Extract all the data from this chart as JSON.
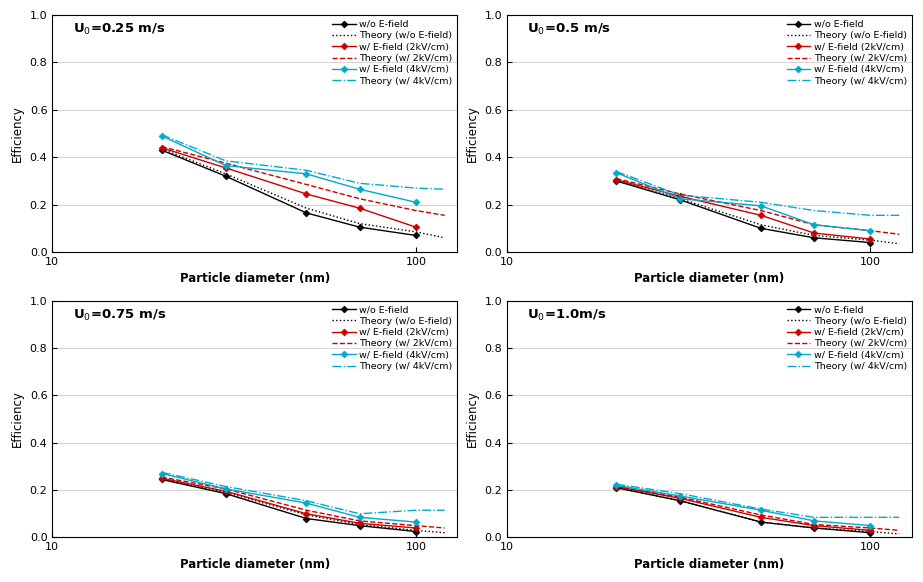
{
  "subplots": [
    {
      "title": "U$_0$=0.25 m/s",
      "x_exp": [
        20,
        30,
        50,
        70,
        100
      ],
      "x_theory": [
        20,
        30,
        50,
        70,
        100,
        120
      ],
      "wo_exp": [
        0.43,
        0.32,
        0.165,
        0.105,
        0.07
      ],
      "wo_theory": [
        0.435,
        0.33,
        0.185,
        0.12,
        0.085,
        0.06
      ],
      "w2k_exp": [
        0.44,
        0.355,
        0.245,
        0.185,
        0.105
      ],
      "w2k_theory": [
        0.445,
        0.375,
        0.285,
        0.225,
        0.175,
        0.155
      ],
      "w4k_exp": [
        0.49,
        0.365,
        0.33,
        0.265,
        0.21
      ],
      "w4k_theory": [
        0.495,
        0.385,
        0.345,
        0.29,
        0.27,
        0.265
      ]
    },
    {
      "title": "U$_0$=0.5 m/s",
      "x_exp": [
        20,
        30,
        50,
        70,
        100
      ],
      "x_theory": [
        20,
        30,
        50,
        70,
        100,
        120
      ],
      "wo_exp": [
        0.3,
        0.22,
        0.1,
        0.06,
        0.04
      ],
      "wo_theory": [
        0.3,
        0.225,
        0.115,
        0.07,
        0.05,
        0.035
      ],
      "w2k_exp": [
        0.305,
        0.235,
        0.155,
        0.08,
        0.055
      ],
      "w2k_theory": [
        0.31,
        0.245,
        0.175,
        0.115,
        0.09,
        0.075
      ],
      "w4k_exp": [
        0.335,
        0.225,
        0.195,
        0.115,
        0.09
      ],
      "w4k_theory": [
        0.34,
        0.24,
        0.21,
        0.175,
        0.155,
        0.155
      ]
    },
    {
      "title": "U$_0$=0.75 m/s",
      "x_exp": [
        20,
        30,
        50,
        70,
        100
      ],
      "x_theory": [
        20,
        30,
        50,
        70,
        100,
        120
      ],
      "wo_exp": [
        0.245,
        0.185,
        0.08,
        0.05,
        0.025
      ],
      "wo_theory": [
        0.245,
        0.19,
        0.095,
        0.055,
        0.03,
        0.02
      ],
      "w2k_exp": [
        0.25,
        0.195,
        0.1,
        0.06,
        0.04
      ],
      "w2k_theory": [
        0.255,
        0.205,
        0.115,
        0.07,
        0.05,
        0.04
      ],
      "w4k_exp": [
        0.27,
        0.205,
        0.145,
        0.085,
        0.065
      ],
      "w4k_theory": [
        0.275,
        0.215,
        0.155,
        0.1,
        0.115,
        0.115
      ]
    },
    {
      "title": "U$_0$=1.0m/s",
      "x_exp": [
        20,
        30,
        50,
        70,
        100
      ],
      "x_theory": [
        20,
        30,
        50,
        70,
        100,
        120
      ],
      "wo_exp": [
        0.21,
        0.155,
        0.065,
        0.04,
        0.02
      ],
      "wo_theory": [
        0.21,
        0.155,
        0.065,
        0.04,
        0.025,
        0.015
      ],
      "w2k_exp": [
        0.215,
        0.165,
        0.085,
        0.05,
        0.03
      ],
      "w2k_theory": [
        0.215,
        0.17,
        0.095,
        0.055,
        0.04,
        0.03
      ],
      "w4k_exp": [
        0.22,
        0.175,
        0.115,
        0.07,
        0.05
      ],
      "w4k_theory": [
        0.225,
        0.185,
        0.12,
        0.085,
        0.085,
        0.085
      ]
    }
  ],
  "legend_labels": [
    "w/o E-field",
    "Theory (w/o E-field)",
    "w/ E-field (2kV/cm)",
    "Theory (w/ 2kV/cm)",
    "w/ E-field (4kV/cm)",
    "Theory (w/ 4kV/cm)"
  ],
  "colors": {
    "black": "#000000",
    "red": "#CC0000",
    "cyan": "#00AACC"
  },
  "xlabel": "Particle diameter (nm)",
  "ylabel": "Efficiency",
  "ylim": [
    0,
    1
  ],
  "xlim_left": 10,
  "xlim_right": 130
}
